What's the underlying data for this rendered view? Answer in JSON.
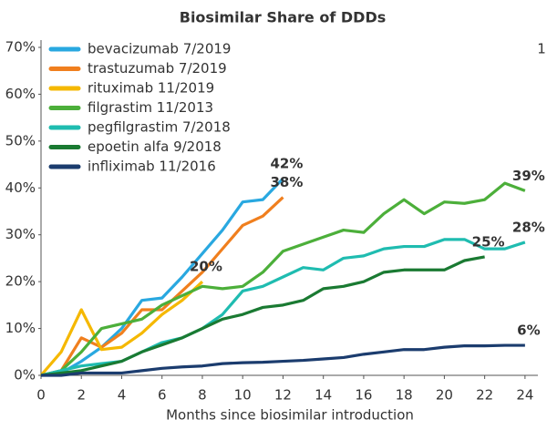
{
  "chart_data": {
    "type": "line",
    "title": "Biosimilar Share of DDDs",
    "annotation": "1",
    "x_label": "Months since biosimilar introduction",
    "xlim": [
      0,
      25
    ],
    "xticks": [
      0,
      2,
      4,
      6,
      8,
      10,
      12,
      14,
      16,
      18,
      20,
      22,
      24
    ],
    "ylim": [
      0,
      70
    ],
    "yticks": [
      {
        "value": 0,
        "label": "0%"
      },
      {
        "value": 10,
        "label": "10%"
      },
      {
        "value": 20,
        "label": "20%"
      },
      {
        "value": 30,
        "label": "30%"
      },
      {
        "value": 40,
        "label": "40%"
      },
      {
        "value": 50,
        "label": "50%"
      },
      {
        "value": 60,
        "label": "60%"
      },
      {
        "value": 70,
        "label": "70%"
      }
    ],
    "grid": false,
    "legend": "upper left",
    "series": [
      {
        "name": "bevacizumab 7/2019",
        "color": "#29a8e0",
        "x": [
          0,
          1,
          2,
          3,
          4,
          5,
          6,
          7,
          8,
          9,
          10,
          11,
          12
        ],
        "values": [
          0,
          0.5,
          3,
          6,
          10,
          16,
          16.5,
          21,
          26,
          31,
          37,
          37.5,
          42
        ],
        "value_labels": [
          null,
          null,
          null,
          null,
          null,
          null,
          null,
          null,
          null,
          null,
          null,
          null,
          "42%"
        ]
      },
      {
        "name": "trastuzumab 7/2019",
        "color": "#f07f1e",
        "x": [
          0,
          1,
          2,
          3,
          4,
          5,
          6,
          7,
          8,
          9,
          10,
          11,
          12
        ],
        "values": [
          0,
          1,
          8,
          6,
          9,
          14,
          14,
          18,
          22,
          27,
          32,
          34,
          38
        ],
        "value_labels": [
          null,
          null,
          null,
          null,
          null,
          null,
          null,
          null,
          null,
          null,
          null,
          null,
          "38%"
        ]
      },
      {
        "name": "rituximab 11/2019",
        "color": "#f5b800",
        "x": [
          0,
          1,
          2,
          3,
          4,
          5,
          6,
          7,
          8
        ],
        "values": [
          0,
          5,
          14,
          5.5,
          6,
          9,
          13,
          16,
          20
        ],
        "value_labels": [
          null,
          null,
          null,
          null,
          null,
          null,
          null,
          null,
          "20%"
        ]
      },
      {
        "name": "filgrastim 11/2013",
        "color": "#4caf3a",
        "x": [
          0,
          1,
          2,
          3,
          4,
          5,
          6,
          7,
          8,
          9,
          10,
          11,
          12,
          13,
          14,
          15,
          16,
          17,
          18,
          19,
          20,
          21,
          22,
          23,
          24
        ],
        "values": [
          0,
          1,
          5,
          10,
          11,
          12,
          15,
          17,
          19,
          18.5,
          19,
          22,
          26.5,
          28,
          29.5,
          31,
          30.5,
          34.5,
          37.5,
          34.5,
          37,
          36.7,
          37.5,
          41,
          39.4
        ],
        "value_labels": [
          null,
          null,
          null,
          null,
          null,
          null,
          null,
          null,
          null,
          null,
          null,
          null,
          null,
          null,
          null,
          null,
          null,
          null,
          null,
          null,
          null,
          null,
          null,
          null,
          "39%"
        ]
      },
      {
        "name": "pegfilgrastim 7/2018",
        "color": "#1fbcb0",
        "x": [
          0,
          1,
          2,
          3,
          4,
          5,
          6,
          7,
          8,
          9,
          10,
          11,
          12,
          13,
          14,
          15,
          16,
          17,
          18,
          19,
          20,
          21,
          22,
          23,
          24
        ],
        "values": [
          0,
          1,
          2,
          2.5,
          3,
          5,
          7,
          8,
          10,
          13,
          18,
          19,
          21,
          23,
          22.5,
          25,
          25.5,
          27,
          27.5,
          27.5,
          29,
          29,
          27,
          27,
          28.4
        ],
        "value_labels": [
          null,
          null,
          null,
          null,
          null,
          null,
          null,
          null,
          null,
          null,
          null,
          null,
          null,
          null,
          null,
          null,
          null,
          null,
          null,
          null,
          null,
          null,
          null,
          null,
          "28%"
        ]
      },
      {
        "name": "epoetin alfa 9/2018",
        "color": "#1a7a32",
        "x": [
          0,
          1,
          2,
          3,
          4,
          5,
          6,
          7,
          8,
          9,
          10,
          11,
          12,
          13,
          14,
          15,
          16,
          17,
          18,
          19,
          20,
          21,
          22
        ],
        "values": [
          0,
          0.5,
          1,
          2,
          3,
          5,
          6.5,
          8,
          10,
          12,
          13,
          14.5,
          15,
          16,
          18.5,
          19,
          20,
          22,
          22.5,
          22.5,
          22.5,
          24.5,
          25.3
        ],
        "value_labels": [
          null,
          null,
          null,
          null,
          null,
          null,
          null,
          null,
          null,
          null,
          null,
          null,
          null,
          null,
          null,
          null,
          null,
          null,
          null,
          null,
          null,
          null,
          "25%"
        ]
      },
      {
        "name": "infliximab 11/2016",
        "color": "#1b3c6e",
        "x": [
          0,
          1,
          2,
          3,
          4,
          5,
          6,
          7,
          8,
          9,
          10,
          11,
          12,
          13,
          14,
          15,
          16,
          17,
          18,
          19,
          20,
          21,
          22,
          23,
          24
        ],
        "values": [
          0,
          0,
          0.5,
          0.5,
          0.5,
          1,
          1.5,
          1.8,
          2,
          2.5,
          2.7,
          2.8,
          3,
          3.2,
          3.5,
          3.8,
          4.5,
          5,
          5.5,
          5.5,
          6,
          6.3,
          6.3,
          6.4,
          6.4
        ],
        "value_labels": [
          null,
          null,
          null,
          null,
          null,
          null,
          null,
          null,
          null,
          null,
          null,
          null,
          null,
          null,
          null,
          null,
          null,
          null,
          null,
          null,
          null,
          null,
          null,
          null,
          "6%"
        ]
      }
    ]
  }
}
